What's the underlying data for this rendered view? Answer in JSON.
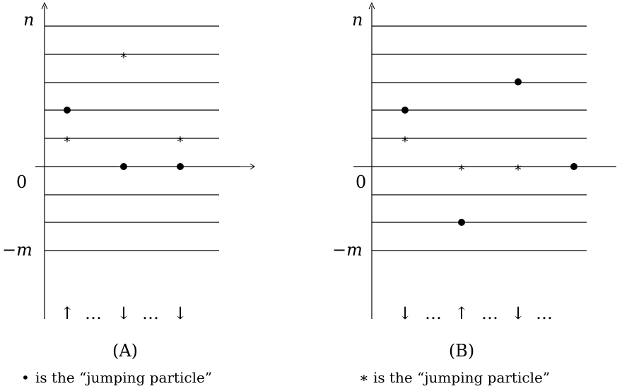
{
  "panels": [
    {
      "id": "A",
      "top_label": "n",
      "zero_label": "0",
      "bottom_label": "−m",
      "caption": "(A)",
      "legend_symbol": "•",
      "legend_text": "is the “jumping particle”",
      "arrows": [
        "↑",
        "…",
        "↓",
        "…",
        "↓"
      ],
      "dots": [
        [
          1,
          2
        ],
        [
          2,
          0
        ],
        [
          3,
          0
        ]
      ],
      "stars": [
        [
          2,
          4
        ],
        [
          1,
          1
        ],
        [
          3,
          1
        ]
      ]
    },
    {
      "id": "B",
      "top_label": "n",
      "zero_label": "0",
      "bottom_label": "−m",
      "caption": "(B)",
      "legend_symbol": "∗",
      "legend_text": "is the “jumping particle”",
      "arrows": [
        "↓",
        "…",
        "↑",
        "…",
        "↓",
        "…"
      ],
      "dots": [
        [
          3,
          3
        ],
        [
          1,
          2
        ],
        [
          2,
          -2
        ],
        [
          4,
          0
        ]
      ],
      "stars": [
        [
          1,
          1
        ],
        [
          2,
          0
        ],
        [
          3,
          0
        ],
        [
          4,
          0
        ]
      ]
    }
  ]
}
